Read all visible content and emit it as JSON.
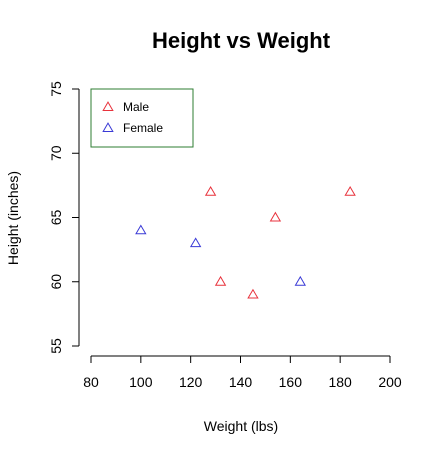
{
  "chart_data": {
    "type": "scatter",
    "title": "Height vs Weight",
    "xlabel": "Weight (lbs)",
    "ylabel": "Height (inches)",
    "xlim": [
      80,
      200
    ],
    "ylim": [
      55,
      75
    ],
    "xticks": [
      80,
      100,
      120,
      140,
      160,
      180,
      200
    ],
    "yticks": [
      55,
      60,
      65,
      70,
      75
    ],
    "grid": false,
    "marker": "open-triangle",
    "legend_position": "top-left",
    "series": [
      {
        "name": "Male",
        "color": "#e8323c",
        "points": [
          {
            "x": 128,
            "y": 67
          },
          {
            "x": 132,
            "y": 60
          },
          {
            "x": 145,
            "y": 59
          },
          {
            "x": 154,
            "y": 65
          },
          {
            "x": 184,
            "y": 67
          }
        ]
      },
      {
        "name": "Female",
        "color": "#3a3ad6",
        "points": [
          {
            "x": 100,
            "y": 64
          },
          {
            "x": 122,
            "y": 63
          },
          {
            "x": 164,
            "y": 60
          }
        ]
      }
    ]
  }
}
